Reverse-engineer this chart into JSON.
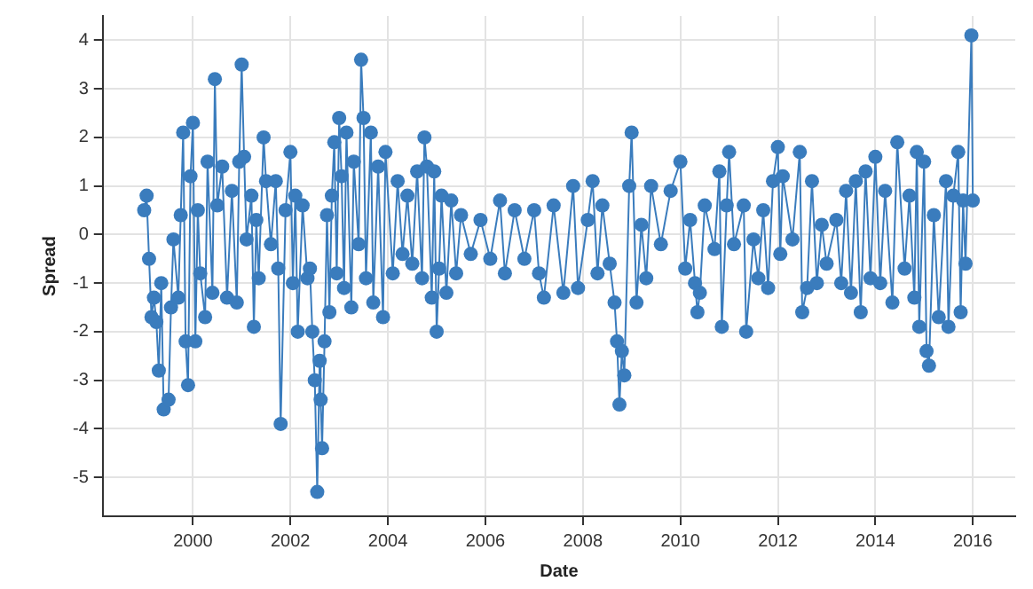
{
  "chart_data": {
    "type": "line",
    "xlabel": "Date",
    "ylabel": "Spread",
    "xlim": [
      1998.15,
      2016.87
    ],
    "xticks": [
      2000,
      2002,
      2004,
      2006,
      2008,
      2010,
      2012,
      2014,
      2016
    ],
    "ylim": [
      -5.8,
      4.5
    ],
    "yticks": [
      -5,
      -4,
      -3,
      -2,
      -1,
      0,
      1,
      2,
      3,
      4
    ],
    "grid": true,
    "marker": "circle",
    "line_style": "solid",
    "series": [
      {
        "color": "#3a7cbd",
        "x": [
          1999.0,
          1999.05,
          1999.1,
          1999.15,
          1999.2,
          1999.25,
          1999.3,
          1999.35,
          1999.4,
          1999.5,
          1999.55,
          1999.6,
          1999.7,
          1999.75,
          1999.8,
          1999.85,
          1999.9,
          1999.95,
          2000.0,
          2000.05,
          2000.1,
          2000.15,
          2000.25,
          2000.3,
          2000.4,
          2000.45,
          2000.5,
          2000.6,
          2000.7,
          2000.8,
          2000.9,
          2000.95,
          2001.0,
          2001.05,
          2001.1,
          2001.2,
          2001.25,
          2001.3,
          2001.35,
          2001.45,
          2001.5,
          2001.6,
          2001.7,
          2001.75,
          2001.8,
          2001.9,
          2002.0,
          2002.05,
          2002.1,
          2002.15,
          2002.25,
          2002.35,
          2002.4,
          2002.45,
          2002.5,
          2002.55,
          2002.6,
          2002.62,
          2002.65,
          2002.7,
          2002.75,
          2002.8,
          2002.85,
          2002.9,
          2002.95,
          2003.0,
          2003.05,
          2003.1,
          2003.15,
          2003.25,
          2003.3,
          2003.4,
          2003.45,
          2003.5,
          2003.55,
          2003.65,
          2003.7,
          2003.8,
          2003.9,
          2003.95,
          2004.1,
          2004.2,
          2004.3,
          2004.4,
          2004.5,
          2004.6,
          2004.7,
          2004.75,
          2004.8,
          2004.9,
          2004.95,
          2005.0,
          2005.05,
          2005.1,
          2005.2,
          2005.3,
          2005.4,
          2005.5,
          2005.7,
          2005.9,
          2006.1,
          2006.3,
          2006.4,
          2006.6,
          2006.8,
          2007.0,
          2007.1,
          2007.2,
          2007.4,
          2007.6,
          2007.8,
          2007.9,
          2008.1,
          2008.2,
          2008.3,
          2008.4,
          2008.55,
          2008.65,
          2008.7,
          2008.75,
          2008.8,
          2008.85,
          2008.95,
          2009.0,
          2009.1,
          2009.2,
          2009.3,
          2009.4,
          2009.6,
          2009.8,
          2010.0,
          2010.1,
          2010.2,
          2010.3,
          2010.35,
          2010.4,
          2010.5,
          2010.7,
          2010.8,
          2010.85,
          2010.95,
          2011.0,
          2011.1,
          2011.3,
          2011.35,
          2011.5,
          2011.6,
          2011.7,
          2011.8,
          2011.9,
          2012.0,
          2012.05,
          2012.1,
          2012.3,
          2012.45,
          2012.5,
          2012.6,
          2012.7,
          2012.8,
          2012.9,
          2013.0,
          2013.2,
          2013.3,
          2013.4,
          2013.5,
          2013.6,
          2013.7,
          2013.8,
          2013.9,
          2014.0,
          2014.1,
          2014.2,
          2014.35,
          2014.45,
          2014.6,
          2014.7,
          2014.8,
          2014.85,
          2014.9,
          2015.0,
          2015.05,
          2015.1,
          2015.2,
          2015.3,
          2015.45,
          2015.5,
          2015.6,
          2015.7,
          2015.75,
          2015.8,
          2015.85,
          2015.97,
          2016.0
        ],
        "values": [
          0.5,
          0.8,
          -0.5,
          -1.7,
          -1.3,
          -1.8,
          -2.8,
          -1.0,
          -3.6,
          -3.4,
          -1.5,
          -0.1,
          -1.3,
          0.4,
          2.1,
          -2.2,
          -3.1,
          1.2,
          2.3,
          -2.2,
          0.5,
          -0.8,
          -1.7,
          1.5,
          -1.2,
          3.2,
          0.6,
          1.4,
          -1.3,
          0.9,
          -1.4,
          1.5,
          3.5,
          1.6,
          -0.1,
          0.8,
          -1.9,
          0.3,
          -0.9,
          2.0,
          1.1,
          -0.2,
          1.1,
          -0.7,
          -3.9,
          0.5,
          1.7,
          -1.0,
          0.8,
          -2.0,
          0.6,
          -0.9,
          -0.7,
          -2.0,
          -3.0,
          -5.3,
          -2.6,
          -3.4,
          -4.4,
          -2.2,
          0.4,
          -1.6,
          0.8,
          1.9,
          -0.8,
          2.4,
          1.2,
          -1.1,
          2.1,
          -1.5,
          1.5,
          -0.2,
          3.6,
          2.4,
          -0.9,
          2.1,
          -1.4,
          1.4,
          -1.7,
          1.7,
          -0.8,
          1.1,
          -0.4,
          0.8,
          -0.6,
          1.3,
          -0.9,
          2.0,
          1.4,
          -1.3,
          1.3,
          -2.0,
          -0.7,
          0.8,
          -1.2,
          0.7,
          -0.8,
          0.4,
          -0.4,
          0.3,
          -0.5,
          0.7,
          -0.8,
          0.5,
          -0.5,
          0.5,
          -0.8,
          -1.3,
          0.6,
          -1.2,
          1.0,
          -1.1,
          0.3,
          1.1,
          -0.8,
          0.6,
          -0.6,
          -1.4,
          -2.2,
          -3.5,
          -2.4,
          -2.9,
          1.0,
          2.1,
          -1.4,
          0.2,
          -0.9,
          1.0,
          -0.2,
          0.9,
          1.5,
          -0.7,
          0.3,
          -1.0,
          -1.6,
          -1.2,
          0.6,
          -0.3,
          1.3,
          -1.9,
          0.6,
          1.7,
          -0.2,
          0.6,
          -2.0,
          -0.1,
          -0.9,
          0.5,
          -1.1,
          1.1,
          1.8,
          -0.4,
          1.2,
          -0.1,
          1.7,
          -1.6,
          -1.1,
          1.1,
          -1.0,
          0.2,
          -0.6,
          0.3,
          -1.0,
          0.9,
          -1.2,
          1.1,
          -1.6,
          1.3,
          -0.9,
          1.6,
          -1.0,
          0.9,
          -1.4,
          1.9,
          -0.7,
          0.8,
          -1.3,
          1.7,
          -1.9,
          1.5,
          -2.4,
          -2.7,
          0.4,
          -1.7,
          1.1,
          -1.9,
          0.8,
          1.7,
          -1.6,
          0.7,
          -0.6,
          4.1,
          0.7
        ]
      }
    ]
  }
}
